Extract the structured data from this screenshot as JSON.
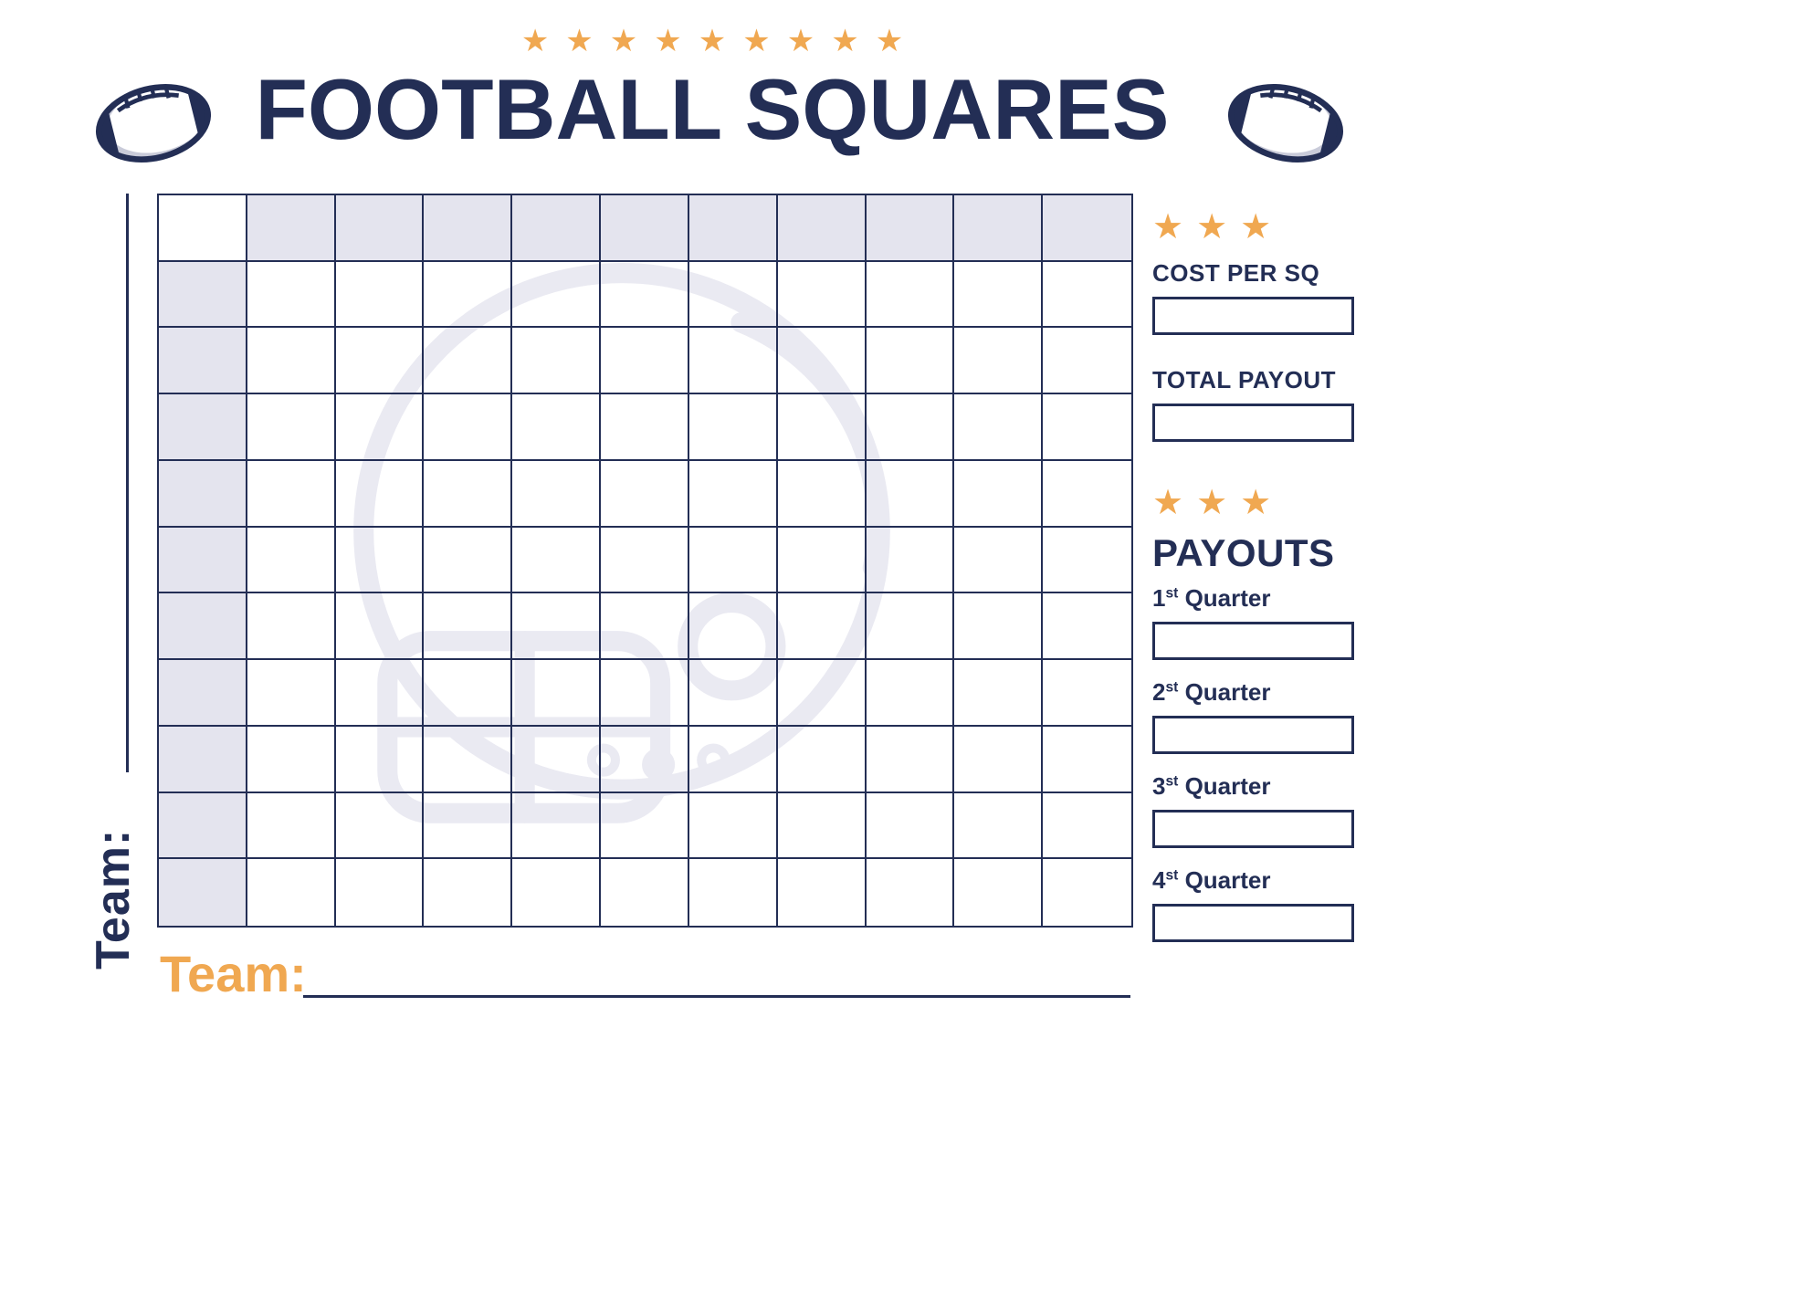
{
  "header": {
    "title": "FOOTBALL SQUARES",
    "star_count": 9
  },
  "grid": {
    "rows": 11,
    "cols": 11
  },
  "left": {
    "team_label": "Team:"
  },
  "bottom": {
    "team_label": "Team:"
  },
  "sidebar": {
    "top_star_count": 3,
    "cost_per_sq": {
      "label": "COST PER SQ",
      "value": ""
    },
    "total_payout": {
      "label": "TOTAL PAYOUT",
      "value": ""
    },
    "payouts_star_count": 3,
    "payouts_heading": "PAYOUTS",
    "quarters": [
      {
        "num": "1",
        "ord": "st",
        "word": "Quarter",
        "value": ""
      },
      {
        "num": "2",
        "ord": "st",
        "word": "Quarter",
        "value": ""
      },
      {
        "num": "3",
        "ord": "st",
        "word": "Quarter",
        "value": ""
      },
      {
        "num": "4",
        "ord": "st",
        "word": "Quarter",
        "value": ""
      }
    ]
  },
  "colors": {
    "navy": "#232e55",
    "orange": "#f0a851",
    "shade": "#e4e4ee",
    "watermark": "#eaeaf2",
    "ball_gray": "#c9cbd9"
  }
}
